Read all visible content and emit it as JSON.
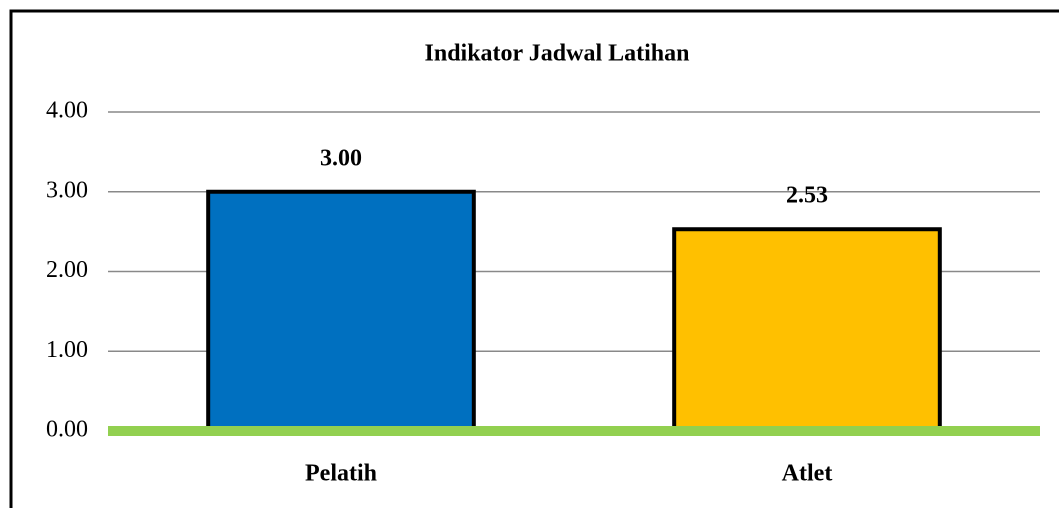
{
  "chart_data": {
    "type": "bar",
    "title": "Indikator Jadwal Latihan",
    "categories": [
      "Pelatih",
      "Atlet"
    ],
    "values": [
      3.0,
      2.53
    ],
    "value_labels": [
      "3.00",
      "2.53"
    ],
    "colors": [
      "#0070c0",
      "#ffc000"
    ],
    "ylim": [
      0,
      4
    ],
    "yticks": [
      {
        "value": 0,
        "label": "0.00"
      },
      {
        "value": 1,
        "label": "1.00"
      },
      {
        "value": 2,
        "label": "2.00"
      },
      {
        "value": 3,
        "label": "3.00"
      },
      {
        "value": 4,
        "label": "4.00"
      }
    ],
    "grid": true,
    "axis_color": "#92d050"
  }
}
